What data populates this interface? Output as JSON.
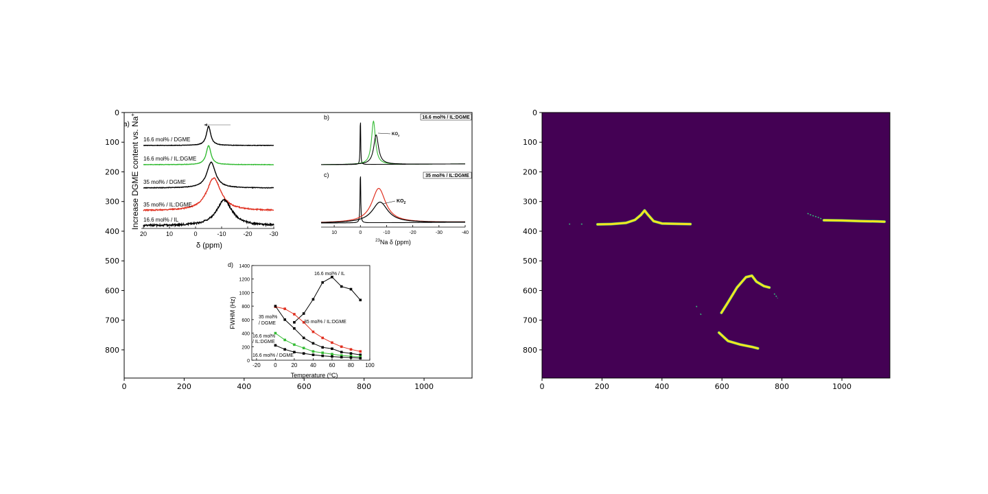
{
  "colors": {
    "black": "#000000",
    "green": "#33bb33",
    "red": "#e03020",
    "mask_background": "#440154",
    "mask_foreground": "#f4e61e",
    "mask_edge": "#35b779"
  },
  "chart_data": [
    {
      "type": "image",
      "axes": {
        "x_ticks": [
          "0",
          "200",
          "400",
          "600",
          "800",
          "1000"
        ],
        "y_ticks": [
          "0",
          "100",
          "200",
          "300",
          "400",
          "500",
          "600",
          "700",
          "800"
        ],
        "xlim": [
          0,
          1160
        ],
        "ylim": [
          895,
          0
        ]
      },
      "panels": {
        "a": {
          "label": "a)",
          "ylabel": "Increase DGME content vs. Na",
          "ylabel_sup": "+",
          "xlabel": "δ (ppm)",
          "x_ticks": [
            "20",
            "10",
            "0",
            "-10",
            "-20",
            "-30"
          ],
          "traces": [
            {
              "name": "16.6 mol% / DGME",
              "color": "black",
              "peak_ppm": -5,
              "height": 62,
              "width_ppm": 1.0
            },
            {
              "name": "16.6 mol% / IL:DGME",
              "color": "green",
              "peak_ppm": -5,
              "height": 62,
              "width_ppm": 1.1
            },
            {
              "name": "35 mol% / DGME",
              "color": "black",
              "peak_ppm": -6,
              "height": 75,
              "width_ppm": 2.0
            },
            {
              "name": "35 mol% / IL:DGME",
              "color": "red",
              "peak_ppm": -7,
              "height": 95,
              "width_ppm": 3.3
            },
            {
              "name": "16.6 mol% / IL",
              "color": "black",
              "peak_ppm": -11,
              "height": 75,
              "width_ppm": 3.6
            }
          ]
        },
        "b": {
          "label": "b)",
          "legend": "16.6 mol% / IL:DGME",
          "annotation": "KO",
          "annotation_sub": "2"
        },
        "c": {
          "label": "c)",
          "legend": "35 mol% / IL:DGME",
          "annotation": "KO",
          "annotation_sub": "2",
          "xlabel_pre": "23",
          "xlabel": "Na δ (ppm)",
          "x_ticks": [
            "10",
            "0",
            "-10",
            "-20",
            "-30",
            "-40"
          ]
        },
        "d": {
          "label": "d)",
          "type": "line",
          "xlabel": "Temperature (",
          "xlabel_sup": "o",
          "xlabel_end": "C)",
          "ylabel": "FWHM (Hz)",
          "xlim": [
            -25,
            100
          ],
          "ylim": [
            0,
            1400
          ],
          "x_ticks": [
            "-20",
            "0",
            "20",
            "40",
            "60",
            "80",
            "100"
          ],
          "y_ticks": [
            "0",
            "200",
            "400",
            "600",
            "800",
            "1000",
            "1200",
            "1400"
          ],
          "series": [
            {
              "name": "16.6 mol% / IL",
              "color": "black",
              "x": [
                20,
                30,
                40,
                50,
                60,
                70,
                80,
                90
              ],
              "y": [
                560,
                690,
                900,
                1150,
                1230,
                1090,
                1050,
                890
              ]
            },
            {
              "name": "35 mol% / IL:DGME",
              "color": "red",
              "x": [
                0,
                10,
                20,
                30,
                40,
                50,
                60,
                70,
                80,
                90
              ],
              "y": [
                790,
                760,
                680,
                560,
                420,
                330,
                260,
                200,
                160,
                130
              ]
            },
            {
              "name": "35 mol% / DGME",
              "color": "black",
              "x": [
                0,
                10,
                20,
                30,
                40,
                50,
                60,
                70,
                80,
                90
              ],
              "y": [
                800,
                600,
                470,
                330,
                250,
                190,
                170,
                120,
                100,
                80
              ]
            },
            {
              "name": "16.6 mol% / IL:DGME",
              "color": "green",
              "x": [
                0,
                10,
                20,
                30,
                40,
                50,
                60,
                70,
                80,
                90
              ],
              "y": [
                400,
                300,
                230,
                180,
                130,
                110,
                90,
                70,
                60,
                50
              ]
            },
            {
              "name": "16.6 mol% / DGME",
              "color": "black",
              "x": [
                0,
                10,
                20,
                30,
                40,
                50,
                60,
                70,
                80,
                90
              ],
              "y": [
                220,
                160,
                120,
                100,
                80,
                65,
                55,
                45,
                40,
                30
              ]
            }
          ],
          "labels": [
            "16.6 mol% / IL",
            "35 mol%",
            "/ DGME",
            "35 mol% / IL:DGME",
            "16.6 mol%",
            "/ IL:DGME",
            "16.6 mol% / DGME"
          ]
        }
      }
    },
    {
      "type": "heatmap",
      "axes": {
        "x_ticks": [
          "0",
          "200",
          "400",
          "600",
          "800",
          "1000"
        ],
        "y_ticks": [
          "0",
          "100",
          "200",
          "300",
          "400",
          "500",
          "600",
          "700",
          "800"
        ],
        "xlim": [
          0,
          1160
        ],
        "ylim": [
          895,
          0
        ]
      },
      "mask_segments": [
        {
          "x": [
            185,
            230,
            280,
            310,
            330,
            342,
            352,
            372,
            400,
            450,
            495
          ],
          "y": [
            377,
            376,
            372,
            362,
            345,
            330,
            343,
            366,
            374,
            375,
            376
          ]
        },
        {
          "x": [
            940,
            1000,
            1060,
            1120,
            1142
          ],
          "y": [
            363,
            364,
            366,
            367,
            368
          ]
        },
        {
          "x": [
            598,
            620,
            650,
            680,
            700,
            715,
            740,
            758
          ],
          "y": [
            675,
            640,
            590,
            555,
            550,
            570,
            585,
            590
          ]
        },
        {
          "x": [
            590,
            620,
            660,
            700,
            720
          ],
          "y": [
            742,
            770,
            782,
            790,
            795
          ]
        }
      ],
      "mask_specks": [
        {
          "x": [
            90,
            94
          ],
          "y": [
            376,
            376
          ]
        },
        {
          "x": [
            130,
            135
          ],
          "y": [
            376,
            376
          ]
        },
        {
          "x": [
            885,
            900,
            920,
            935
          ],
          "y": [
            340,
            347,
            353,
            360
          ]
        },
        {
          "x": [
            514,
            518
          ],
          "y": [
            652,
            658
          ]
        },
        {
          "x": [
            528,
            532
          ],
          "y": [
            678,
            684
          ]
        },
        {
          "x": [
            774,
            780,
            786
          ],
          "y": [
            610,
            618,
            626
          ]
        }
      ]
    }
  ]
}
